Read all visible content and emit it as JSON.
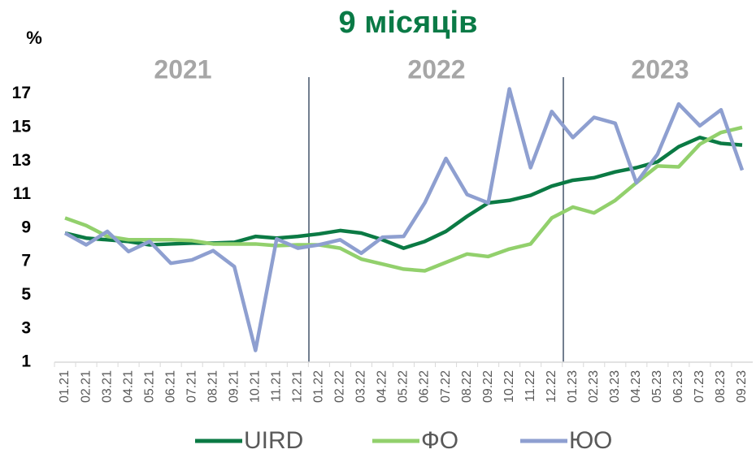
{
  "chart_data": {
    "type": "line",
    "title": "9 місяців",
    "y_label": "%",
    "annotations": [
      "2021",
      "2022",
      "2023"
    ],
    "categories": [
      "01.21",
      "02.21",
      "03.21",
      "04.21",
      "05.21",
      "06.21",
      "07.21",
      "08.21",
      "09.21",
      "10.21",
      "11.21",
      "12.21",
      "01.22",
      "02.22",
      "03.22",
      "04.22",
      "05.22",
      "06.22",
      "07.22",
      "08.22",
      "09.22",
      "10.22",
      "11.22",
      "12.22",
      "01.23",
      "02.23",
      "03.23",
      "04.23",
      "05.23",
      "06.23",
      "07.23",
      "08.23",
      "09.23"
    ],
    "series": [
      {
        "name": "UIRD",
        "color": "#0b7a44",
        "values": [
          8.7,
          8.4,
          8.3,
          8.2,
          8.0,
          8.05,
          8.1,
          8.1,
          8.15,
          8.5,
          8.4,
          8.5,
          8.65,
          8.85,
          8.7,
          8.3,
          7.8,
          8.2,
          8.8,
          9.7,
          10.5,
          10.65,
          10.95,
          11.5,
          11.85,
          12.0,
          12.35,
          12.6,
          12.95,
          13.85,
          14.4,
          14.05,
          13.95
        ]
      },
      {
        "name": "ФО",
        "color": "#92d06c",
        "values": [
          9.6,
          9.15,
          8.5,
          8.3,
          8.3,
          8.3,
          8.25,
          8.05,
          8.05,
          8.05,
          7.95,
          8.0,
          8.0,
          7.8,
          7.15,
          6.85,
          6.55,
          6.45,
          6.95,
          7.45,
          7.3,
          7.75,
          8.05,
          9.6,
          10.25,
          9.9,
          10.65,
          11.7,
          12.7,
          12.65,
          14.0,
          14.7,
          15.0
        ]
      },
      {
        "name": "ЮО",
        "color": "#8e9fd0",
        "values": [
          8.7,
          8.0,
          8.8,
          7.6,
          8.2,
          6.9,
          7.1,
          7.65,
          6.7,
          1.7,
          8.35,
          7.8,
          8.0,
          8.3,
          7.5,
          8.45,
          8.5,
          10.5,
          13.15,
          11.0,
          10.5,
          17.3,
          12.6,
          15.95,
          14.4,
          15.6,
          15.25,
          11.7,
          13.4,
          16.4,
          15.1,
          16.05,
          12.45
        ]
      }
    ],
    "ylim": [
      1,
      18
    ],
    "yticks": [
      1,
      3,
      5,
      7,
      9,
      11,
      13,
      15,
      17
    ]
  }
}
